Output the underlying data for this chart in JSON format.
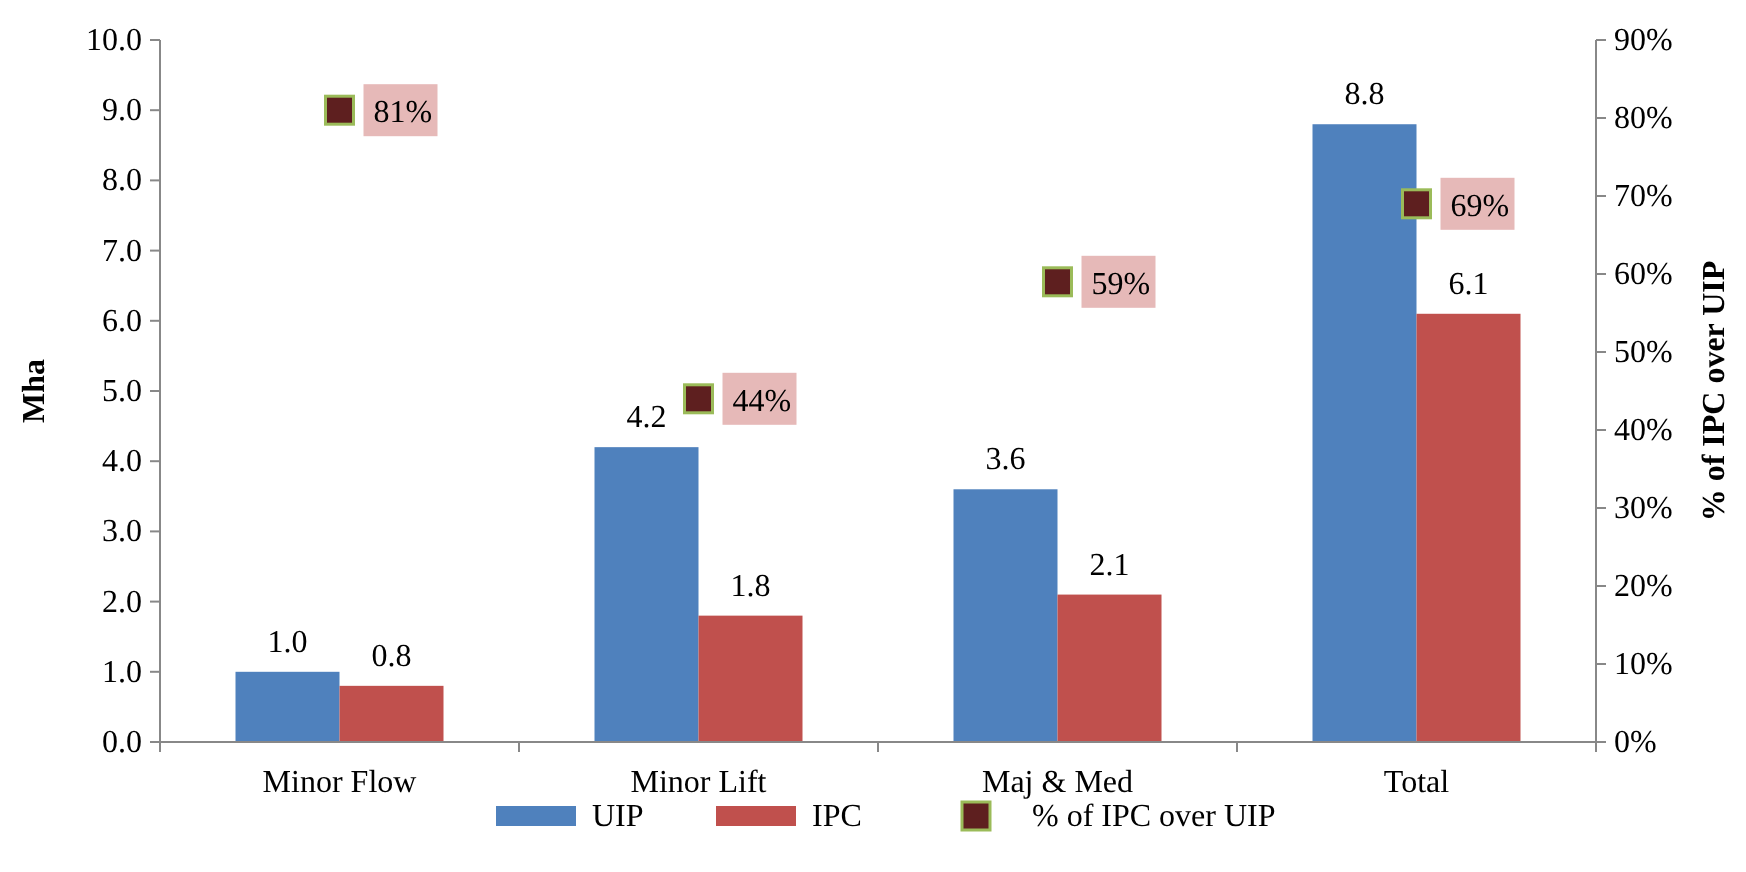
{
  "chart_data": {
    "type": "bar",
    "ylabel": "Mha",
    "y2label": "% of IPC over UIP",
    "categories": [
      "Minor Flow",
      "Minor Lift",
      "Maj & Med",
      "Total"
    ],
    "series": [
      {
        "name": "UIP",
        "color": "#4f81bd",
        "values": [
          1.0,
          4.2,
          3.6,
          8.8
        ],
        "value_labels": [
          "1.0",
          "4.2",
          "3.6",
          "8.8"
        ]
      },
      {
        "name": "IPC",
        "color": "#c0504d",
        "values": [
          0.8,
          1.8,
          2.1,
          6.1
        ],
        "value_labels": [
          "0.8",
          "1.8",
          "2.1",
          "6.1"
        ]
      },
      {
        "name": "% of IPC over UIP",
        "type": "scatter",
        "axis": "y2",
        "marker": "square",
        "color": "#5e1f1f",
        "values": [
          81,
          44,
          59,
          69
        ],
        "value_labels": [
          "81%",
          "44%",
          "59%",
          "69%"
        ]
      }
    ],
    "ylim": [
      0,
      10
    ],
    "yticks": [
      {
        "value": 0,
        "label": "0.0"
      },
      {
        "value": 1,
        "label": "1.0"
      },
      {
        "value": 2,
        "label": "2.0"
      },
      {
        "value": 3,
        "label": "3.0"
      },
      {
        "value": 4,
        "label": "4.0"
      },
      {
        "value": 5,
        "label": "5.0"
      },
      {
        "value": 6,
        "label": "6.0"
      },
      {
        "value": 7,
        "label": "7.0"
      },
      {
        "value": 8,
        "label": "8.0"
      },
      {
        "value": 9,
        "label": "9.0"
      },
      {
        "value": 10,
        "label": "10.0"
      }
    ],
    "y2lim": [
      0,
      90
    ],
    "y2ticks": [
      {
        "value": 0,
        "label": "0%"
      },
      {
        "value": 10,
        "label": "10%"
      },
      {
        "value": 20,
        "label": "20%"
      },
      {
        "value": 30,
        "label": "30%"
      },
      {
        "value": 40,
        "label": "40%"
      },
      {
        "value": 50,
        "label": "50%"
      },
      {
        "value": 60,
        "label": "60%"
      },
      {
        "value": 70,
        "label": "70%"
      },
      {
        "value": 80,
        "label": "80%"
      },
      {
        "value": 90,
        "label": "90%"
      }
    ],
    "legend": "bottom"
  }
}
